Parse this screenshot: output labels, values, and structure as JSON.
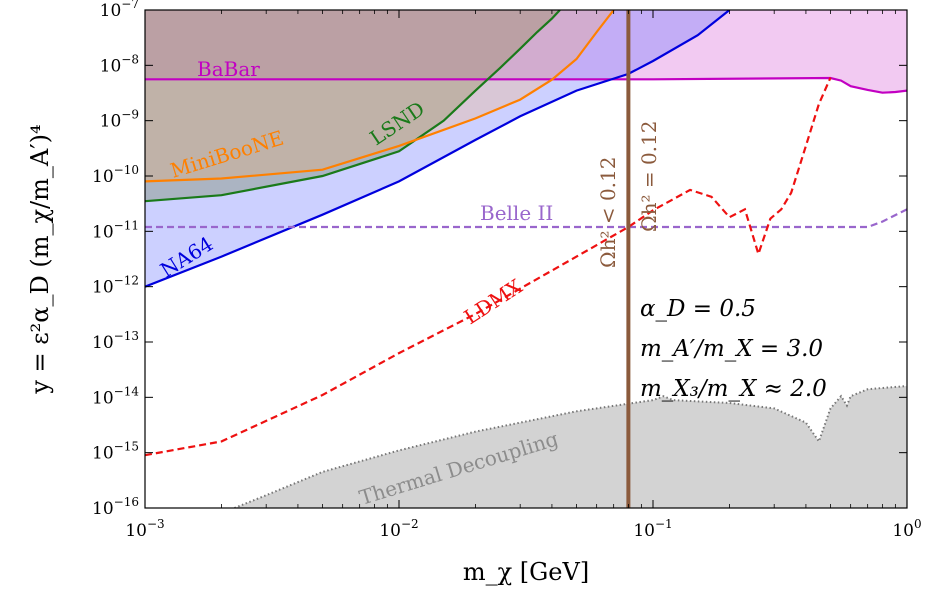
{
  "chart_data": {
    "type": "line",
    "xlabel": "m_χ [GeV]",
    "ylabel": "y = ε²α_D (m_χ/m_A′)⁴",
    "xscale": "log",
    "yscale": "log",
    "xlim": [
      0.001,
      1
    ],
    "ylim": [
      1e-16,
      1e-07
    ],
    "x_ticks": [
      {
        "value": 0.001,
        "base": "10",
        "exp": "−3"
      },
      {
        "value": 0.01,
        "base": "10",
        "exp": "−2"
      },
      {
        "value": 0.1,
        "base": "10",
        "exp": "−1"
      },
      {
        "value": 1,
        "base": "10",
        "exp": "0"
      }
    ],
    "y_ticks": [
      {
        "value": 1e-16,
        "base": "10",
        "exp": "−16"
      },
      {
        "value": 1e-15,
        "base": "10",
        "exp": "−15"
      },
      {
        "value": 1e-14,
        "base": "10",
        "exp": "−14"
      },
      {
        "value": 1e-13,
        "base": "10",
        "exp": "−13"
      },
      {
        "value": 1e-12,
        "base": "10",
        "exp": "−12"
      },
      {
        "value": 1e-11,
        "base": "10",
        "exp": "−11"
      },
      {
        "value": 1e-10,
        "base": "10",
        "exp": "−10"
      },
      {
        "value": 1e-09,
        "base": "10",
        "exp": "−9"
      },
      {
        "value": 1e-08,
        "base": "10",
        "exp": "−8"
      },
      {
        "value": 1e-07,
        "base": "10",
        "exp": "−7"
      }
    ],
    "series": [
      {
        "name": "Thermal Decoupling",
        "kind": "region-below",
        "line_color": "#777777",
        "fill_color": "#d3d3d3",
        "dash": "dotted",
        "x": [
          0.00225,
          0.003,
          0.005,
          0.01,
          0.02,
          0.05,
          0.1,
          0.11,
          0.12,
          0.2,
          0.3,
          0.4,
          0.45,
          0.5,
          0.55,
          0.58,
          0.6,
          0.7,
          1.0
        ],
        "y": [
          1e-16,
          1.7e-16,
          4.5e-16,
          1.1e-15,
          2.4e-15,
          5.6e-15,
          8.9e-15,
          1.05e-14,
          8.9e-15,
          7.9e-15,
          6.3e-15,
          3.5e-15,
          1.6e-15,
          6.3e-15,
          1.05e-14,
          7.1e-15,
          1.05e-14,
          1.4e-14,
          1.6e-14
        ]
      },
      {
        "name": "BaBar",
        "kind": "region-above",
        "line_color": "#c200c2",
        "fill_color": "rgba(230,150,230,0.5)",
        "dash": "solid",
        "label_color": "#c200c2",
        "x": [
          0.001,
          0.01,
          0.1,
          0.5,
          0.55,
          0.6,
          0.7,
          0.8,
          0.9,
          1.0
        ],
        "y": [
          5.6e-09,
          5.6e-09,
          5.6e-09,
          5.9e-09,
          5.3e-09,
          4.2e-09,
          3.6e-09,
          3.2e-09,
          3.3e-09,
          3.5e-09
        ]
      },
      {
        "name": "NA64",
        "kind": "region-above",
        "line_color": "#0000dd",
        "fill_color": "rgba(110,120,255,0.35)",
        "dash": "solid",
        "label_color": "#0000dd",
        "x": [
          0.001,
          0.002,
          0.005,
          0.01,
          0.02,
          0.03,
          0.05,
          0.08,
          0.1,
          0.15,
          0.2
        ],
        "y": [
          1e-12,
          3.5e-12,
          2e-11,
          8e-11,
          4.5e-10,
          1.2e-09,
          3.5e-09,
          7e-09,
          1.2e-08,
          3.5e-08,
          1e-07
        ]
      },
      {
        "name": "LSND",
        "kind": "region-above",
        "line_color": "#1a7a1a",
        "fill_color": "rgba(110,130,80,0.35)",
        "dash": "solid",
        "label_color": "#1a7a1a",
        "x": [
          0.001,
          0.002,
          0.005,
          0.01,
          0.015,
          0.02,
          0.025,
          0.03,
          0.035,
          0.04,
          0.043
        ],
        "y": [
          3.5e-11,
          4.5e-11,
          1e-10,
          2.8e-10,
          1e-09,
          3.5e-09,
          9e-09,
          2e-08,
          4e-08,
          7e-08,
          1e-07
        ]
      },
      {
        "name": "MiniBooNE",
        "kind": "region-above",
        "line_color": "#ff8000",
        "fill_color": "rgba(255,170,90,0.25)",
        "dash": "solid",
        "label_color": "#ff8000",
        "x": [
          0.001,
          0.002,
          0.005,
          0.01,
          0.02,
          0.03,
          0.04,
          0.05,
          0.06,
          0.07
        ],
        "y": [
          8e-11,
          9e-11,
          1.3e-10,
          3.5e-10,
          1.1e-09,
          2.4e-09,
          5.5e-09,
          1.3e-08,
          4e-08,
          1e-07
        ]
      },
      {
        "name": "Belle II",
        "kind": "line",
        "line_color": "#9966cc",
        "dash": "dashed",
        "label_color": "#9966cc",
        "x": [
          0.001,
          0.005,
          0.01,
          0.05,
          0.1,
          0.3,
          0.7,
          0.8,
          1.0
        ],
        "y": [
          1.2e-11,
          1.2e-11,
          1.2e-11,
          1.2e-11,
          1.2e-11,
          1.2e-11,
          1.2e-11,
          1.5e-11,
          2.5e-11
        ]
      },
      {
        "name": "LDMX",
        "kind": "line",
        "line_color": "#ee1111",
        "dash": "dashed",
        "label_color": "#ee1111",
        "x": [
          0.001,
          0.002,
          0.005,
          0.01,
          0.02,
          0.05,
          0.08,
          0.1,
          0.14,
          0.17,
          0.2,
          0.23,
          0.26,
          0.29,
          0.32,
          0.35,
          0.4,
          0.45,
          0.5
        ],
        "y": [
          9e-16,
          1.6e-15,
          1.1e-14,
          6.3e-14,
          3.2e-13,
          3.5e-12,
          1.2e-11,
          2.4e-11,
          5.6e-11,
          4.2e-11,
          1.8e-11,
          2.5e-11,
          3.9e-12,
          1.7e-11,
          2.5e-11,
          5e-11,
          3.5e-10,
          2e-09,
          6e-09
        ]
      }
    ],
    "vertical_line": {
      "x": 0.08,
      "color": "#8b5a3c",
      "label_left": "Ωh² < 0.12",
      "label_right": "Ωh² = 0.12"
    },
    "region_labels": {
      "babar": "BaBar",
      "lsnd": "LSND",
      "miniboone": "MiniBooNE",
      "na64": "NA64",
      "belle": "Belle II",
      "ldmx": "LDMX",
      "thermal": "Thermal Decoupling"
    },
    "parameters": [
      "α_D = 0.5",
      "m_A′/m_X = 3.0",
      "m_X₃/m_X ≈ 2.0"
    ],
    "grid": false,
    "legend": "none"
  }
}
